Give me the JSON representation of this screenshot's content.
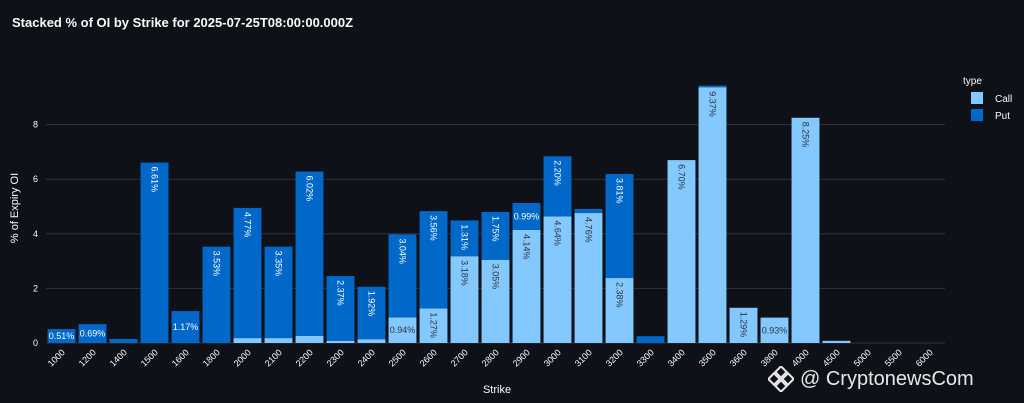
{
  "title": "Stacked % of OI by Strike for 2025-07-25T08:00:00.000Z",
  "watermark": "@ CryptonewsCom",
  "colors": {
    "call": "#83c9ff",
    "put": "#0068c9",
    "background": "#0e1117",
    "grid": "#31333f"
  },
  "chart_data": {
    "type": "bar",
    "stacked": true,
    "title": "Stacked % of OI by Strike for 2025-07-25T08:00:00.000Z",
    "xlabel": "Strike",
    "ylabel": "% of Expiry OI",
    "ylim": [
      0,
      10
    ],
    "yticks": [
      0,
      2,
      4,
      6,
      8
    ],
    "legend_title": "type",
    "legend_position": "top-right",
    "grid": true,
    "categories": [
      "1000",
      "1200",
      "1400",
      "1500",
      "1600",
      "1800",
      "2000",
      "2100",
      "2200",
      "2300",
      "2400",
      "2500",
      "2600",
      "2700",
      "2800",
      "2900",
      "3000",
      "3100",
      "3200",
      "3300",
      "3400",
      "3500",
      "3600",
      "3800",
      "4000",
      "4500",
      "5000",
      "5500",
      "6000"
    ],
    "series": [
      {
        "name": "Call",
        "values": [
          0,
          0,
          0,
          0,
          0,
          0,
          0.18,
          0.18,
          0.26,
          0.08,
          0.14,
          0.94,
          1.27,
          3.18,
          3.05,
          4.14,
          4.64,
          4.76,
          2.38,
          0,
          6.7,
          9.37,
          1.29,
          0.93,
          8.25,
          0.08,
          0,
          0,
          0
        ],
        "labels": [
          "",
          "",
          "",
          "",
          "",
          "",
          "",
          "",
          "",
          "",
          "",
          "0.94%",
          "1.27%",
          "3.18%",
          "3.05%",
          "4.14%",
          "4.64%",
          "4.76%",
          "2.38%",
          "",
          "6.70%",
          "9.37%",
          "1.29%",
          "0.93%",
          "8.25%",
          "",
          "",
          "",
          ""
        ]
      },
      {
        "name": "Put",
        "values": [
          0.51,
          0.69,
          0.15,
          6.61,
          1.17,
          3.53,
          4.77,
          3.35,
          6.02,
          2.37,
          1.92,
          3.04,
          3.56,
          1.31,
          1.75,
          0.99,
          2.2,
          0.15,
          3.81,
          0.25,
          0,
          0.06,
          0,
          0,
          0,
          0,
          0,
          0,
          0
        ],
        "labels": [
          "0.51%",
          "0.69%",
          "",
          "6.61%",
          "1.17%",
          "3.53%",
          "4.77%",
          "3.35%",
          "6.02%",
          "2.37%",
          "1.92%",
          "3.04%",
          "3.56%",
          "1.31%",
          "1.75%",
          "0.99%",
          "2.20%",
          "",
          "3.81%",
          "",
          "",
          "",
          "",
          "",
          "",
          "",
          "",
          "",
          ""
        ]
      }
    ]
  }
}
